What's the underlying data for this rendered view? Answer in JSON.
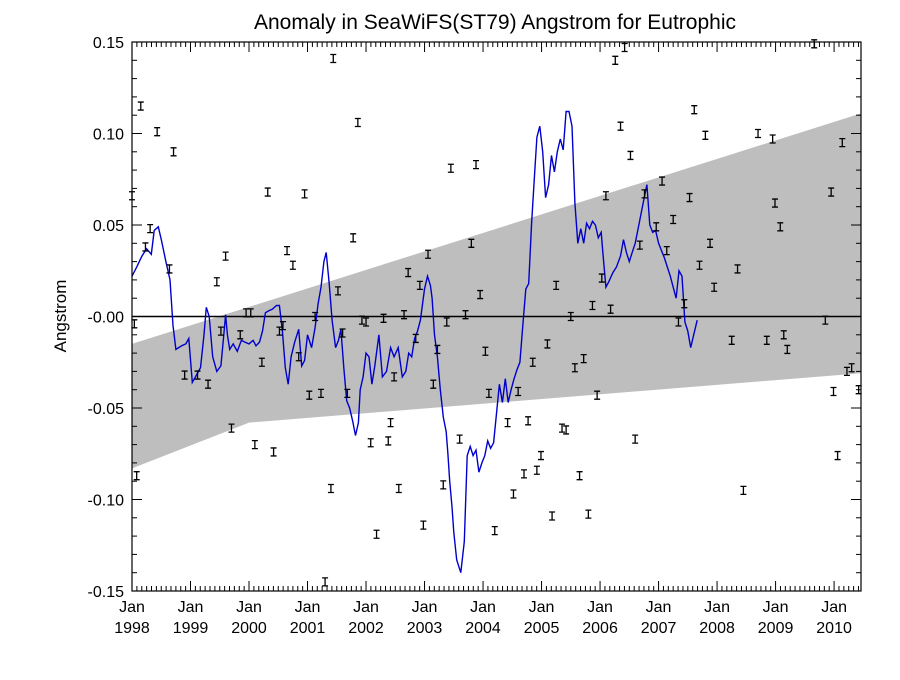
{
  "chart_data": {
    "type": "scatter",
    "title": "Anomaly in SeaWiFS(ST79) Angstrom for Eutrophic",
    "xlabel": "",
    "ylabel": "Angstrom",
    "xlim": [
      1998.0,
      2010.46
    ],
    "ylim": [
      -0.15,
      0.15
    ],
    "grid": false,
    "y_ticks": [
      {
        "value": 0.15,
        "label": "0.15"
      },
      {
        "value": 0.1,
        "label": "0.10"
      },
      {
        "value": 0.05,
        "label": "0.05"
      },
      {
        "value": 0.0,
        "label": "-0.00"
      },
      {
        "value": -0.05,
        "label": "-0.05"
      },
      {
        "value": -0.1,
        "label": "-0.10"
      },
      {
        "value": -0.15,
        "label": "-0.15"
      }
    ],
    "x_ticks": [
      {
        "value": 1998.0,
        "month": "Jan",
        "year": "1998"
      },
      {
        "value": 1999.0,
        "month": "Jan",
        "year": "1999"
      },
      {
        "value": 2000.0,
        "month": "Jan",
        "year": "2000"
      },
      {
        "value": 2001.0,
        "month": "Jan",
        "year": "2001"
      },
      {
        "value": 2002.0,
        "month": "Jan",
        "year": "2002"
      },
      {
        "value": 2003.0,
        "month": "Jan",
        "year": "2003"
      },
      {
        "value": 2004.0,
        "month": "Jan",
        "year": "2004"
      },
      {
        "value": 2005.0,
        "month": "Jan",
        "year": "2005"
      },
      {
        "value": 2006.0,
        "month": "Jan",
        "year": "2006"
      },
      {
        "value": 2007.0,
        "month": "Jan",
        "year": "2007"
      },
      {
        "value": 2008.0,
        "month": "Jan",
        "year": "2008"
      },
      {
        "value": 2009.0,
        "month": "Jan",
        "year": "2009"
      },
      {
        "value": 2010.0,
        "month": "Jan",
        "year": "2010"
      }
    ],
    "colors": {
      "line": "#0000cc",
      "band": "#bebebe",
      "points": "#000000",
      "zero_line": "#000000"
    },
    "confidence_band": {
      "upper": [
        [
          1998.0,
          -0.015
        ],
        [
          2010.46,
          0.111
        ]
      ],
      "lower": [
        [
          1998.0,
          -0.083
        ],
        [
          2000.0,
          -0.058
        ],
        [
          2010.46,
          -0.031
        ]
      ]
    },
    "zero_line": 0.0,
    "monthly_points": [
      [
        1998.0,
        0.066
      ],
      [
        1998.04,
        -0.004
      ],
      [
        1998.08,
        -0.087
      ],
      [
        1998.15,
        0.115
      ],
      [
        1998.23,
        0.038
      ],
      [
        1998.31,
        0.048
      ],
      [
        1998.43,
        0.101
      ],
      [
        1998.64,
        0.026
      ],
      [
        1998.71,
        0.09
      ],
      [
        1998.9,
        -0.032
      ],
      [
        1999.12,
        -0.032
      ],
      [
        1999.3,
        -0.037
      ],
      [
        1999.45,
        0.019
      ],
      [
        1999.52,
        -0.008
      ],
      [
        1999.6,
        0.033
      ],
      [
        1999.7,
        -0.061
      ],
      [
        1999.85,
        -0.01
      ],
      [
        1999.95,
        0.002
      ],
      [
        2000.03,
        0.002
      ],
      [
        2000.1,
        -0.07
      ],
      [
        2000.22,
        -0.025
      ],
      [
        2000.32,
        0.068
      ],
      [
        2000.42,
        -0.074
      ],
      [
        2000.52,
        -0.008
      ],
      [
        2000.58,
        -0.005
      ],
      [
        2000.65,
        0.036
      ],
      [
        2000.75,
        0.028
      ],
      [
        2000.85,
        -0.022
      ],
      [
        2000.95,
        0.067
      ],
      [
        2001.03,
        -0.043
      ],
      [
        2001.13,
        0.0
      ],
      [
        2001.23,
        -0.042
      ],
      [
        2001.3,
        -0.145
      ],
      [
        2001.4,
        -0.094
      ],
      [
        2001.44,
        0.141
      ],
      [
        2001.52,
        0.014
      ],
      [
        2001.6,
        -0.009
      ],
      [
        2001.68,
        -0.042
      ],
      [
        2001.78,
        0.043
      ],
      [
        2001.86,
        0.106
      ],
      [
        2001.93,
        -0.002
      ],
      [
        2002.0,
        -0.003
      ],
      [
        2002.08,
        -0.069
      ],
      [
        2002.18,
        -0.119
      ],
      [
        2002.3,
        -0.001
      ],
      [
        2002.38,
        -0.068
      ],
      [
        2002.42,
        -0.058
      ],
      [
        2002.48,
        -0.033
      ],
      [
        2002.56,
        -0.094
      ],
      [
        2002.65,
        0.001
      ],
      [
        2002.72,
        0.024
      ],
      [
        2002.85,
        -0.012
      ],
      [
        2002.92,
        0.017
      ],
      [
        2002.98,
        -0.114
      ],
      [
        2003.06,
        0.034
      ],
      [
        2003.15,
        -0.037
      ],
      [
        2003.22,
        -0.018
      ],
      [
        2003.32,
        -0.092
      ],
      [
        2003.38,
        -0.003
      ],
      [
        2003.45,
        0.081
      ],
      [
        2003.6,
        -0.067
      ],
      [
        2003.7,
        0.001
      ],
      [
        2003.8,
        0.04
      ],
      [
        2003.88,
        0.083
      ],
      [
        2003.95,
        0.012
      ],
      [
        2004.04,
        -0.019
      ],
      [
        2004.1,
        -0.042
      ],
      [
        2004.2,
        -0.117
      ],
      [
        2004.42,
        -0.058
      ],
      [
        2004.52,
        -0.097
      ],
      [
        2004.6,
        -0.041
      ],
      [
        2004.7,
        -0.086
      ],
      [
        2004.77,
        -0.057
      ],
      [
        2004.85,
        -0.025
      ],
      [
        2004.92,
        -0.084
      ],
      [
        2004.99,
        -0.076
      ],
      [
        2005.1,
        -0.015
      ],
      [
        2005.18,
        -0.109
      ],
      [
        2005.25,
        0.017
      ],
      [
        2005.35,
        -0.061
      ],
      [
        2005.42,
        -0.062
      ],
      [
        2005.5,
        0.0
      ],
      [
        2005.57,
        -0.028
      ],
      [
        2005.65,
        -0.087
      ],
      [
        2005.72,
        -0.023
      ],
      [
        2005.8,
        -0.108
      ],
      [
        2005.87,
        0.006
      ],
      [
        2005.95,
        -0.043
      ],
      [
        2006.03,
        0.021
      ],
      [
        2006.1,
        0.066
      ],
      [
        2006.18,
        0.004
      ],
      [
        2006.26,
        0.14
      ],
      [
        2006.35,
        0.104
      ],
      [
        2006.42,
        0.147
      ],
      [
        2006.52,
        0.088
      ],
      [
        2006.6,
        -0.067
      ],
      [
        2006.68,
        0.039
      ],
      [
        2006.76,
        0.067
      ],
      [
        2006.96,
        0.049
      ],
      [
        2007.06,
        0.074
      ],
      [
        2007.14,
        0.036
      ],
      [
        2007.25,
        0.053
      ],
      [
        2007.34,
        -0.003
      ],
      [
        2007.44,
        0.007
      ],
      [
        2007.53,
        0.065
      ],
      [
        2007.61,
        0.113
      ],
      [
        2007.7,
        0.028
      ],
      [
        2007.8,
        0.099
      ],
      [
        2007.88,
        0.04
      ],
      [
        2007.95,
        0.016
      ],
      [
        2008.25,
        -0.013
      ],
      [
        2008.35,
        0.026
      ],
      [
        2008.45,
        -0.095
      ],
      [
        2008.7,
        0.1
      ],
      [
        2008.85,
        -0.013
      ],
      [
        2008.95,
        0.097
      ],
      [
        2008.99,
        0.062
      ],
      [
        2009.08,
        0.049
      ],
      [
        2009.14,
        -0.01
      ],
      [
        2009.2,
        -0.018
      ],
      [
        2009.66,
        0.149
      ],
      [
        2009.85,
        -0.002
      ],
      [
        2009.95,
        0.068
      ],
      [
        2009.99,
        -0.041
      ],
      [
        2010.06,
        -0.076
      ],
      [
        2010.14,
        0.095
      ],
      [
        2010.22,
        -0.03
      ],
      [
        2010.3,
        -0.028
      ],
      [
        2010.42,
        -0.04
      ]
    ],
    "smoothed_line": [
      [
        1998.0,
        0.022
      ],
      [
        1998.08,
        0.027
      ],
      [
        1998.17,
        0.033
      ],
      [
        1998.25,
        0.037
      ],
      [
        1998.33,
        0.034
      ],
      [
        1998.38,
        0.047
      ],
      [
        1998.45,
        0.049
      ],
      [
        1998.5,
        0.042
      ],
      [
        1998.58,
        0.03
      ],
      [
        1998.65,
        0.02
      ],
      [
        1998.7,
        -0.005
      ],
      [
        1998.75,
        -0.018
      ],
      [
        1998.85,
        -0.016
      ],
      [
        1998.92,
        -0.015
      ],
      [
        1998.97,
        -0.012
      ],
      [
        1999.03,
        -0.036
      ],
      [
        1999.1,
        -0.032
      ],
      [
        1999.17,
        -0.028
      ],
      [
        1999.23,
        -0.01
      ],
      [
        1999.27,
        0.005
      ],
      [
        1999.32,
        0.0
      ],
      [
        1999.38,
        -0.022
      ],
      [
        1999.45,
        -0.03
      ],
      [
        1999.52,
        -0.027
      ],
      [
        1999.56,
        -0.013
      ],
      [
        1999.6,
        0.001
      ],
      [
        1999.63,
        -0.01
      ],
      [
        1999.67,
        -0.018
      ],
      [
        1999.73,
        -0.015
      ],
      [
        1999.8,
        -0.019
      ],
      [
        1999.87,
        -0.013
      ],
      [
        1999.93,
        -0.014
      ],
      [
        2000.0,
        -0.015
      ],
      [
        2000.07,
        -0.013
      ],
      [
        2000.12,
        -0.016
      ],
      [
        2000.18,
        -0.014
      ],
      [
        2000.23,
        -0.008
      ],
      [
        2000.28,
        0.002
      ],
      [
        2000.33,
        0.003
      ],
      [
        2000.4,
        0.004
      ],
      [
        2000.47,
        0.006
      ],
      [
        2000.52,
        0.006
      ],
      [
        2000.57,
        -0.008
      ],
      [
        2000.62,
        -0.028
      ],
      [
        2000.67,
        -0.037
      ],
      [
        2000.72,
        -0.022
      ],
      [
        2000.78,
        -0.014
      ],
      [
        2000.85,
        -0.007
      ],
      [
        2000.9,
        -0.027
      ],
      [
        2000.95,
        -0.024
      ],
      [
        2001.0,
        -0.01
      ],
      [
        2001.07,
        -0.017
      ],
      [
        2001.13,
        -0.006
      ],
      [
        2001.18,
        0.007
      ],
      [
        2001.23,
        0.016
      ],
      [
        2001.28,
        0.03
      ],
      [
        2001.32,
        0.035
      ],
      [
        2001.37,
        0.018
      ],
      [
        2001.42,
        -0.002
      ],
      [
        2001.48,
        -0.017
      ],
      [
        2001.53,
        -0.013
      ],
      [
        2001.57,
        -0.007
      ],
      [
        2001.62,
        -0.028
      ],
      [
        2001.67,
        -0.046
      ],
      [
        2001.72,
        -0.05
      ],
      [
        2001.77,
        -0.057
      ],
      [
        2001.82,
        -0.065
      ],
      [
        2001.87,
        -0.058
      ],
      [
        2001.9,
        -0.04
      ],
      [
        2001.95,
        -0.033
      ],
      [
        2002.0,
        -0.02
      ],
      [
        2002.05,
        -0.022
      ],
      [
        2002.1,
        -0.037
      ],
      [
        2002.15,
        -0.027
      ],
      [
        2002.22,
        -0.01
      ],
      [
        2002.28,
        -0.033
      ],
      [
        2002.35,
        -0.03
      ],
      [
        2002.42,
        -0.017
      ],
      [
        2002.48,
        -0.022
      ],
      [
        2002.55,
        -0.017
      ],
      [
        2002.62,
        -0.033
      ],
      [
        2002.68,
        -0.03
      ],
      [
        2002.73,
        -0.02
      ],
      [
        2002.78,
        -0.022
      ],
      [
        2002.83,
        -0.012
      ],
      [
        2002.88,
        -0.008
      ],
      [
        2002.93,
        -0.002
      ],
      [
        2003.0,
        0.015
      ],
      [
        2003.05,
        0.022
      ],
      [
        2003.1,
        0.017
      ],
      [
        2003.13,
        0.01
      ],
      [
        2003.17,
        -0.01
      ],
      [
        2003.22,
        -0.022
      ],
      [
        2003.27,
        -0.04
      ],
      [
        2003.32,
        -0.055
      ],
      [
        2003.37,
        -0.063
      ],
      [
        2003.4,
        -0.075
      ],
      [
        2003.43,
        -0.09
      ],
      [
        2003.47,
        -0.104
      ],
      [
        2003.5,
        -0.118
      ],
      [
        2003.55,
        -0.133
      ],
      [
        2003.62,
        -0.14
      ],
      [
        2003.68,
        -0.123
      ],
      [
        2003.73,
        -0.076
      ],
      [
        2003.78,
        -0.071
      ],
      [
        2003.83,
        -0.076
      ],
      [
        2003.88,
        -0.073
      ],
      [
        2003.93,
        -0.085
      ],
      [
        2003.98,
        -0.08
      ],
      [
        2004.03,
        -0.076
      ],
      [
        2004.08,
        -0.068
      ],
      [
        2004.13,
        -0.072
      ],
      [
        2004.18,
        -0.069
      ],
      [
        2004.23,
        -0.053
      ],
      [
        2004.28,
        -0.037
      ],
      [
        2004.33,
        -0.047
      ],
      [
        2004.38,
        -0.034
      ],
      [
        2004.43,
        -0.047
      ],
      [
        2004.48,
        -0.04
      ],
      [
        2004.53,
        -0.034
      ],
      [
        2004.58,
        -0.029
      ],
      [
        2004.63,
        -0.025
      ],
      [
        2004.68,
        -0.005
      ],
      [
        2004.73,
        0.015
      ],
      [
        2004.78,
        0.018
      ],
      [
        2004.83,
        0.051
      ],
      [
        2004.88,
        0.077
      ],
      [
        2004.92,
        0.098
      ],
      [
        2004.97,
        0.104
      ],
      [
        2005.02,
        0.09
      ],
      [
        2005.07,
        0.065
      ],
      [
        2005.12,
        0.072
      ],
      [
        2005.17,
        0.088
      ],
      [
        2005.22,
        0.079
      ],
      [
        2005.27,
        0.09
      ],
      [
        2005.32,
        0.097
      ],
      [
        2005.37,
        0.091
      ],
      [
        2005.42,
        0.112
      ],
      [
        2005.47,
        0.112
      ],
      [
        2005.52,
        0.104
      ],
      [
        2005.57,
        0.062
      ],
      [
        2005.62,
        0.04
      ],
      [
        2005.67,
        0.048
      ],
      [
        2005.72,
        0.04
      ],
      [
        2005.77,
        0.051
      ],
      [
        2005.82,
        0.048
      ],
      [
        2005.87,
        0.052
      ],
      [
        2005.92,
        0.05
      ],
      [
        2005.97,
        0.043
      ],
      [
        2006.02,
        0.046
      ],
      [
        2006.05,
        0.034
      ],
      [
        2006.1,
        0.016
      ],
      [
        2006.15,
        0.019
      ],
      [
        2006.22,
        0.024
      ],
      [
        2006.28,
        0.027
      ],
      [
        2006.35,
        0.033
      ],
      [
        2006.4,
        0.042
      ],
      [
        2006.45,
        0.035
      ],
      [
        2006.5,
        0.03
      ],
      [
        2006.55,
        0.035
      ],
      [
        2006.6,
        0.04
      ],
      [
        2006.65,
        0.048
      ],
      [
        2006.7,
        0.056
      ],
      [
        2006.75,
        0.064
      ],
      [
        2006.8,
        0.072
      ],
      [
        2006.85,
        0.05
      ],
      [
        2006.9,
        0.046
      ],
      [
        2006.95,
        0.047
      ],
      [
        2007.0,
        0.04
      ],
      [
        2007.1,
        0.032
      ],
      [
        2007.2,
        0.022
      ],
      [
        2007.3,
        0.01
      ],
      [
        2007.35,
        0.025
      ],
      [
        2007.4,
        0.022
      ],
      [
        2007.45,
        -0.003
      ],
      [
        2007.5,
        -0.008
      ],
      [
        2007.55,
        -0.017
      ],
      [
        2007.6,
        -0.01
      ],
      [
        2007.66,
        -0.002
      ]
    ]
  }
}
